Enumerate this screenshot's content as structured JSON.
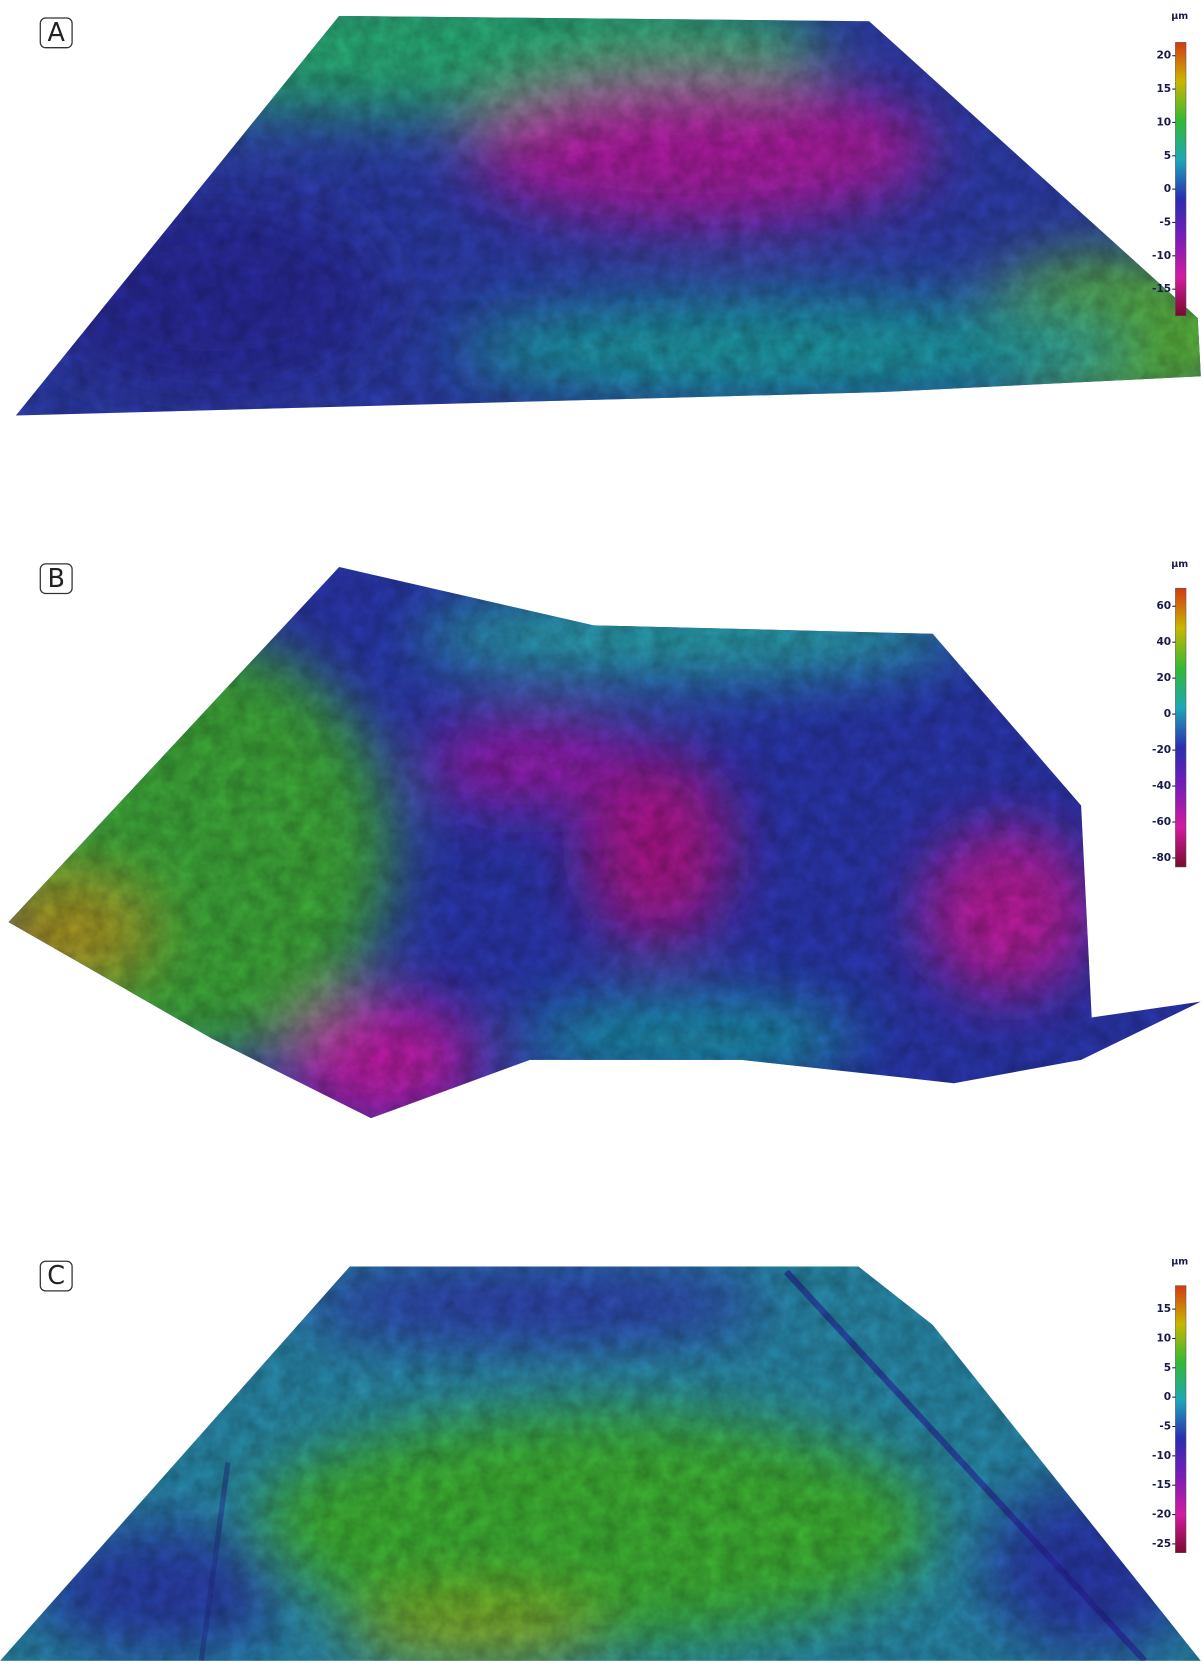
{
  "chart_data": [
    {
      "type": "surface",
      "label": "A",
      "colorbar_label": "µm",
      "clim": [
        -19,
        22
      ],
      "yticks": [
        20,
        15,
        10,
        5,
        0,
        -5,
        -10,
        -15
      ],
      "colormap": [
        "#d23a14",
        "#c9b600",
        "#34b834",
        "#1fa7b5",
        "#2b2db0",
        "#7a1cb8",
        "#d21c9e",
        "#7a0a2c"
      ]
    },
    {
      "type": "surface",
      "label": "B",
      "colorbar_label": "µm",
      "clim": [
        -85,
        70
      ],
      "yticks": [
        60,
        40,
        20,
        0,
        -20,
        -40,
        -60,
        -80
      ],
      "colormap": [
        "#d23a14",
        "#c9b600",
        "#34b834",
        "#1fa7b5",
        "#2b2db0",
        "#7a1cb8",
        "#d21c9e",
        "#7a0a2c"
      ]
    },
    {
      "type": "surface",
      "label": "C",
      "colorbar_label": "µm",
      "clim": [
        -26.5,
        19
      ],
      "yticks": [
        15,
        10,
        5,
        0,
        -5,
        -10,
        -15,
        -20,
        -25
      ],
      "colormap": [
        "#d23a14",
        "#c9b600",
        "#34b834",
        "#1fa7b5",
        "#2b2db0",
        "#7a1cb8",
        "#d21c9e",
        "#7a0a2c"
      ]
    }
  ]
}
